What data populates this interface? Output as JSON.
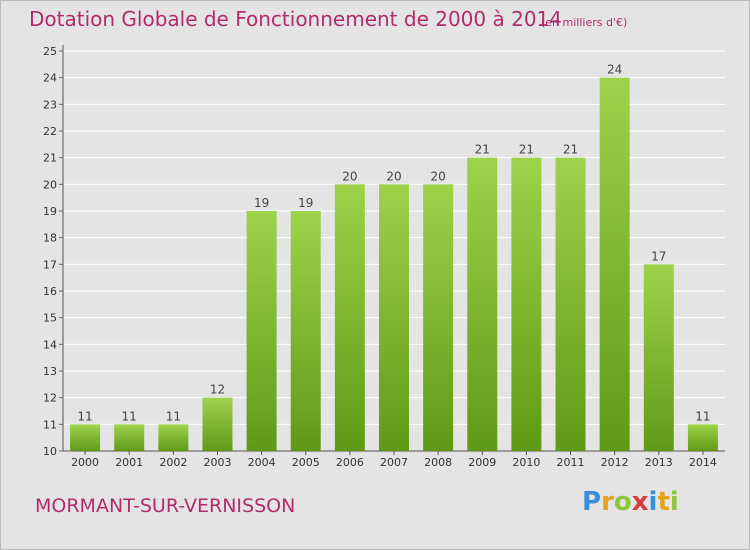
{
  "header": {
    "title": "Dotation Globale de Fonctionnement de 2000 à 2014",
    "subtitle": "(en milliers d'€)"
  },
  "footer": {
    "town": "MORMANT-SUR-VERNISSON",
    "logo": "Proxiti"
  },
  "colors": {
    "title": "#b22c6b",
    "bar_top": "#9ed24b",
    "bar_bottom": "#5f9a17",
    "grid": "#ffffff",
    "background": "#e4e4e4"
  },
  "chart_data": {
    "type": "bar",
    "title": "Dotation Globale de Fonctionnement de 2000 à 2014",
    "subtitle": "(en milliers d'€)",
    "xlabel": "",
    "ylabel": "",
    "categories": [
      "2000",
      "2001",
      "2002",
      "2003",
      "2004",
      "2005",
      "2006",
      "2007",
      "2008",
      "2009",
      "2010",
      "2011",
      "2012",
      "2013",
      "2014"
    ],
    "values": [
      11,
      11,
      11,
      12,
      19,
      19,
      20,
      20,
      20,
      21,
      21,
      21,
      24,
      17,
      11
    ],
    "ylim": [
      10,
      25
    ],
    "yticks": [
      10,
      11,
      12,
      13,
      14,
      15,
      16,
      17,
      18,
      19,
      20,
      21,
      22,
      23,
      24,
      25
    ],
    "grid": true,
    "legend": "none"
  }
}
